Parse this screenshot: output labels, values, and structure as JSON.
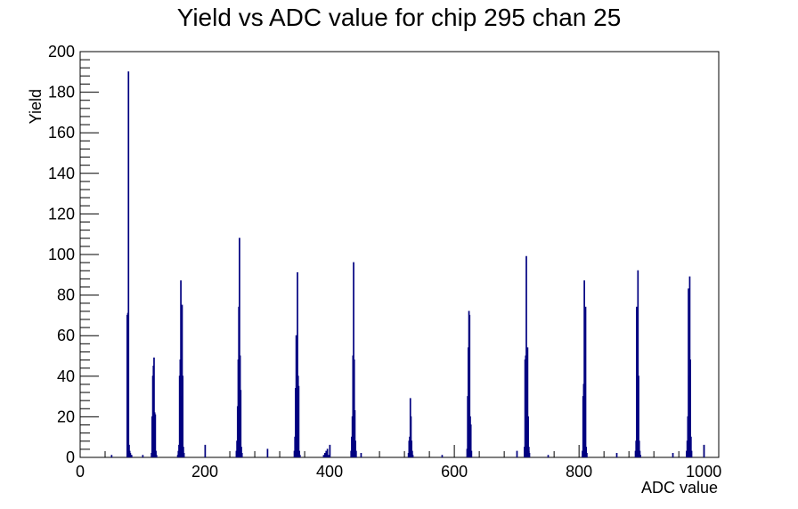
{
  "chart_data": {
    "type": "bar",
    "title": "Yield vs ADC value for chip 295 chan 25",
    "xlabel": "ADC value",
    "ylabel": "Yield",
    "xlim": [
      0,
      1024
    ],
    "ylim": [
      0,
      200
    ],
    "x_ticks": [
      "0",
      "200",
      "400",
      "600",
      "800",
      "1000"
    ],
    "y_ticks": [
      "0",
      "20",
      "40",
      "60",
      "80",
      "100",
      "120",
      "140",
      "160",
      "180",
      "200"
    ],
    "line_color": "#000080",
    "series": [
      {
        "bins": [
          [
            50,
            1
          ],
          [
            75,
            70
          ],
          [
            76,
            71
          ],
          [
            77,
            190
          ],
          [
            78,
            6
          ],
          [
            79,
            3
          ],
          [
            80,
            2
          ],
          [
            81,
            1
          ],
          [
            82,
            1
          ],
          [
            100,
            1
          ],
          [
            114,
            2
          ],
          [
            115,
            20
          ],
          [
            116,
            40
          ],
          [
            117,
            45
          ],
          [
            118,
            49
          ],
          [
            119,
            22
          ],
          [
            120,
            21
          ],
          [
            121,
            3
          ],
          [
            122,
            1
          ],
          [
            156,
            1
          ],
          [
            157,
            3
          ],
          [
            158,
            6
          ],
          [
            159,
            40
          ],
          [
            160,
            48
          ],
          [
            161,
            87
          ],
          [
            162,
            30
          ],
          [
            163,
            75
          ],
          [
            164,
            40
          ],
          [
            165,
            5
          ],
          [
            166,
            2
          ],
          [
            200,
            6
          ],
          [
            250,
            3
          ],
          [
            251,
            8
          ],
          [
            252,
            25
          ],
          [
            253,
            48
          ],
          [
            254,
            74
          ],
          [
            255,
            108
          ],
          [
            256,
            50
          ],
          [
            257,
            33
          ],
          [
            258,
            5
          ],
          [
            259,
            2
          ],
          [
            300,
            4
          ],
          [
            343,
            3
          ],
          [
            344,
            10
          ],
          [
            345,
            34
          ],
          [
            346,
            60
          ],
          [
            347,
            48
          ],
          [
            348,
            91
          ],
          [
            349,
            40
          ],
          [
            350,
            35
          ],
          [
            351,
            3
          ],
          [
            352,
            1
          ],
          [
            390,
            1
          ],
          [
            392,
            2
          ],
          [
            394,
            3
          ],
          [
            396,
            4
          ],
          [
            398,
            1
          ],
          [
            400,
            6
          ],
          [
            434,
            3
          ],
          [
            435,
            10
          ],
          [
            436,
            20
          ],
          [
            437,
            50
          ],
          [
            438,
            96
          ],
          [
            439,
            48
          ],
          [
            440,
            23
          ],
          [
            441,
            8
          ],
          [
            442,
            3
          ],
          [
            450,
            2
          ],
          [
            526,
            2
          ],
          [
            527,
            8
          ],
          [
            528,
            10
          ],
          [
            529,
            29
          ],
          [
            530,
            20
          ],
          [
            531,
            8
          ],
          [
            532,
            3
          ],
          [
            533,
            1
          ],
          [
            580,
            1
          ],
          [
            620,
            4
          ],
          [
            621,
            30
          ],
          [
            622,
            54
          ],
          [
            623,
            72
          ],
          [
            624,
            70
          ],
          [
            625,
            20
          ],
          [
            626,
            16
          ],
          [
            627,
            3
          ],
          [
            700,
            3
          ],
          [
            712,
            5
          ],
          [
            713,
            48
          ],
          [
            714,
            50
          ],
          [
            715,
            99
          ],
          [
            716,
            18
          ],
          [
            717,
            54
          ],
          [
            718,
            20
          ],
          [
            719,
            5
          ],
          [
            720,
            2
          ],
          [
            750,
            1
          ],
          [
            805,
            3
          ],
          [
            806,
            30
          ],
          [
            807,
            36
          ],
          [
            808,
            87
          ],
          [
            809,
            50
          ],
          [
            810,
            74
          ],
          [
            811,
            5
          ],
          [
            812,
            2
          ],
          [
            860,
            2
          ],
          [
            890,
            3
          ],
          [
            891,
            8
          ],
          [
            892,
            74
          ],
          [
            893,
            50
          ],
          [
            894,
            92
          ],
          [
            895,
            40
          ],
          [
            896,
            8
          ],
          [
            897,
            3
          ],
          [
            898,
            1
          ],
          [
            950,
            2
          ],
          [
            972,
            3
          ],
          [
            973,
            8
          ],
          [
            974,
            20
          ],
          [
            975,
            83
          ],
          [
            976,
            40
          ],
          [
            977,
            89
          ],
          [
            978,
            48
          ],
          [
            979,
            10
          ],
          [
            980,
            3
          ],
          [
            1000,
            6
          ]
        ]
      }
    ]
  }
}
